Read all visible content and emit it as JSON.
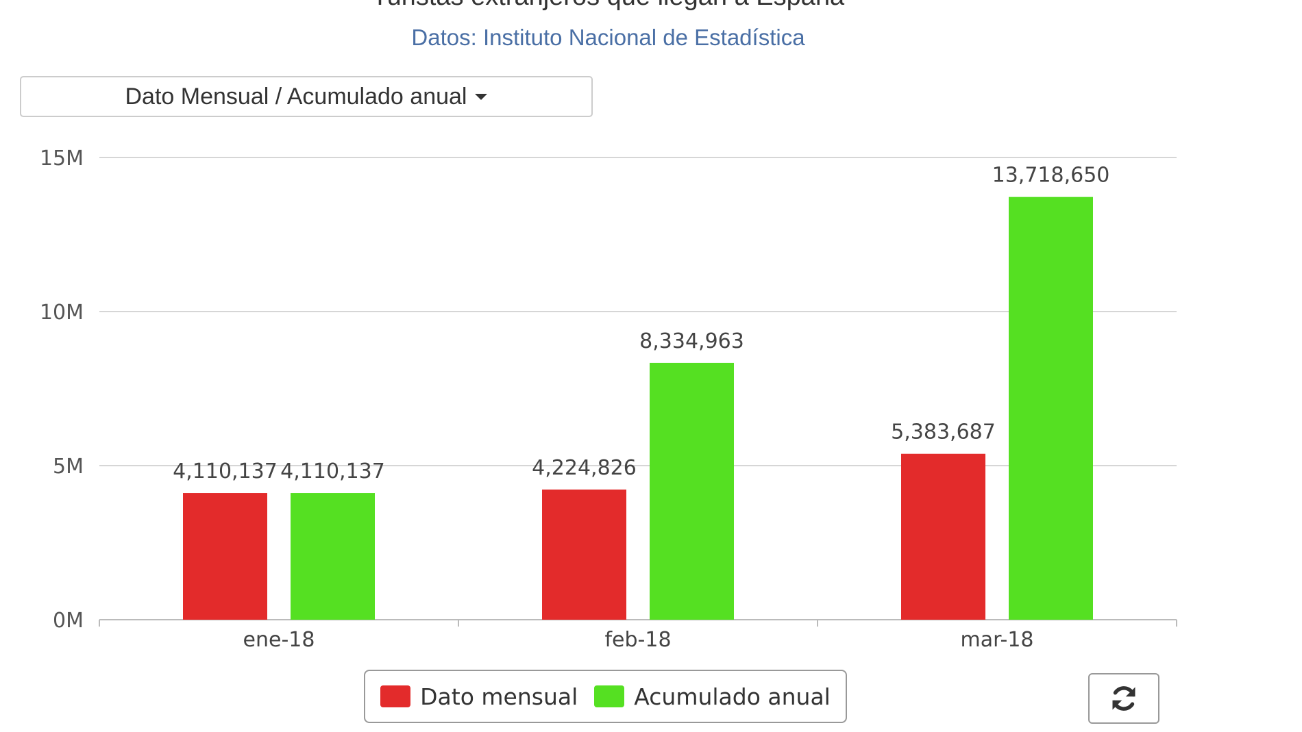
{
  "header": {
    "title": "Turistas extranjeros que llegan a España",
    "subtitle": "Datos: Instituto Nacional de Estadística"
  },
  "dropdown": {
    "label": "Dato Mensual / Acumulado anual",
    "icon": "caret-down-icon"
  },
  "refresh_button": {
    "icon": "refresh-icon"
  },
  "chart_data": {
    "type": "bar",
    "categories": [
      "ene-18",
      "feb-18",
      "mar-18"
    ],
    "series": [
      {
        "name": "Dato mensual",
        "values": [
          4110137,
          4224826,
          5383687
        ],
        "labels": [
          "4,110,137",
          "4,224,826",
          "5,383,687"
        ],
        "color": "#e32b2b"
      },
      {
        "name": "Acumulado anual",
        "values": [
          4110137,
          8334963,
          13718650
        ],
        "labels": [
          "4,110,137",
          "8,334,963",
          "13,718,650"
        ],
        "color": "#55e022"
      }
    ],
    "ylim": [
      0,
      15000000
    ],
    "yticks": [
      0,
      5000000,
      10000000,
      15000000
    ],
    "ytick_labels": [
      "0M",
      "5M",
      "10M",
      "15M"
    ],
    "grid": true,
    "legend_position": "bottom"
  }
}
